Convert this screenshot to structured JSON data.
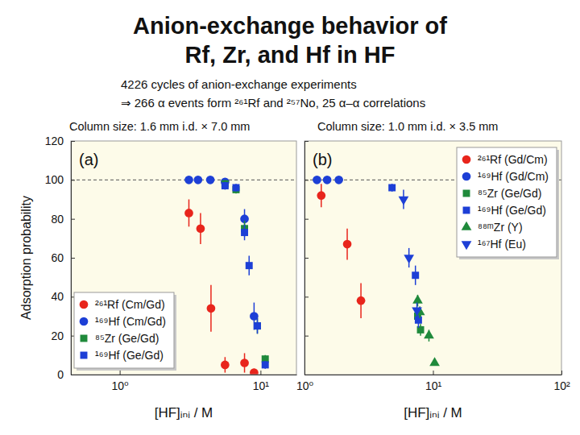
{
  "page": {
    "title": [
      "Anion-exchange behavior of",
      "Rf, Zr, and Hf in HF"
    ],
    "notes": [
      "4226 cycles of anion-exchange experiments",
      "⇒ 266 α events form ²⁶¹Rf and ²⁵⁷No, 25 α–α correlations"
    ]
  },
  "chart_data": [
    {
      "type": "scatter",
      "subtitle": "Column size: 1.6 mm i.d. × 7.0 mm",
      "panel_label": "(a)",
      "xlabel": "[HF]ᵢₙᵢ / M",
      "ylabel": "Adsorption probability",
      "log": "x",
      "xlim": [
        0.45,
        18
      ],
      "xticks": [
        {
          "value": 1,
          "label": "10⁰"
        },
        {
          "value": 10,
          "label": "10¹"
        }
      ],
      "ylim": [
        0,
        120
      ],
      "yticks": [
        0,
        20,
        40,
        60,
        80,
        100,
        120
      ],
      "reference_y": 100,
      "legend": "lower left",
      "grid": false,
      "series": [
        {
          "name": "²⁶¹Rf (Cm/Gd)",
          "color": "#e8251c",
          "marker": "circle",
          "x": [
            3.1,
            3.75,
            4.45,
            5.6,
            7.7,
            9.0
          ],
          "values": [
            83,
            75,
            34,
            5,
            6,
            1
          ],
          "errors": [
            7,
            8,
            12,
            4,
            5,
            2
          ]
        },
        {
          "name": "¹⁶⁹Hf (Cm/Gd)",
          "color": "#1d3fd6",
          "marker": "circle",
          "x": [
            3.1,
            3.6,
            4.4,
            5.6,
            7.7,
            9.0
          ],
          "values": [
            100,
            100,
            100,
            99,
            80,
            30
          ],
          "errors": [
            1,
            1,
            1,
            1,
            5,
            7
          ]
        },
        {
          "name": "⁸⁵Zr (Ge/Gd)",
          "color": "#1f8a3b",
          "marker": "square",
          "x": [
            5.6,
            6.7,
            7.7,
            9.5,
            10.8
          ],
          "values": [
            98,
            95,
            75,
            25,
            8
          ],
          "errors": [
            2,
            2,
            4,
            4,
            2
          ]
        },
        {
          "name": "¹⁶⁹Hf (Ge/Gd)",
          "color": "#1d3fd6",
          "marker": "square",
          "x": [
            5.6,
            6.7,
            7.7,
            8.3,
            9.5,
            10.8
          ],
          "values": [
            97,
            96,
            73,
            56,
            25,
            5
          ],
          "errors": [
            2,
            2,
            4,
            5,
            4,
            2
          ]
        }
      ]
    },
    {
      "type": "scatter",
      "subtitle": "Column size: 1.0 mm i.d. × 3.5 mm",
      "panel_label": "(b)",
      "xlabel": "[HF]ᵢₙᵢ / M",
      "log": "x",
      "xlim": [
        1,
        100
      ],
      "xticks": [
        {
          "value": 1,
          "label": "10⁰"
        },
        {
          "value": 10,
          "label": "10¹"
        },
        {
          "value": 100,
          "label": "10²"
        }
      ],
      "ylim": [
        0,
        120
      ],
      "yticks": [
        0,
        20,
        40,
        60,
        80,
        100,
        120
      ],
      "tick_labels": "x",
      "reference_y": 100,
      "legend": "upper right",
      "grid": false,
      "series": [
        {
          "name": "²⁶¹Rf (Gd/Cm)",
          "color": "#e8251c",
          "marker": "circle",
          "x": [
            1.35,
            2.15,
            2.75
          ],
          "values": [
            92,
            67,
            38
          ],
          "errors": [
            6,
            8,
            9
          ]
        },
        {
          "name": "¹⁶⁹Hf (Gd/Cm)",
          "color": "#1d3fd6",
          "marker": "circle",
          "x": [
            1.25,
            1.5,
            1.85
          ],
          "values": [
            100,
            100,
            100
          ],
          "errors": [
            1,
            1,
            1
          ]
        },
        {
          "name": "⁸⁵Zr (Ge/Gd)",
          "color": "#1f8a3b",
          "marker": "square",
          "x": [
            7.6,
            8.0
          ],
          "values": [
            30,
            23
          ],
          "errors": [
            3,
            3
          ]
        },
        {
          "name": "¹⁶⁹Hf (Ge/Gd)",
          "color": "#1d3fd6",
          "marker": "square",
          "x": [
            4.8,
            7.3,
            7.7
          ],
          "values": [
            96,
            51,
            28
          ],
          "errors": [
            2,
            5,
            4
          ]
        },
        {
          "name": "⁸⁸ᵐZr (Y)",
          "color": "#1f8a3b",
          "marker": "triangle-up",
          "x": [
            7.6,
            7.9,
            9.3,
            10.3
          ],
          "values": [
            38,
            32,
            20,
            6
          ],
          "errors": [
            3,
            3,
            3,
            1
          ]
        },
        {
          "name": "¹⁶⁷Hf (Eu)",
          "color": "#1d3fd6",
          "marker": "triangle-down",
          "x": [
            5.9,
            6.5,
            7.5
          ],
          "values": [
            90,
            60,
            33
          ],
          "errors": [
            5,
            5,
            4
          ]
        }
      ]
    }
  ]
}
